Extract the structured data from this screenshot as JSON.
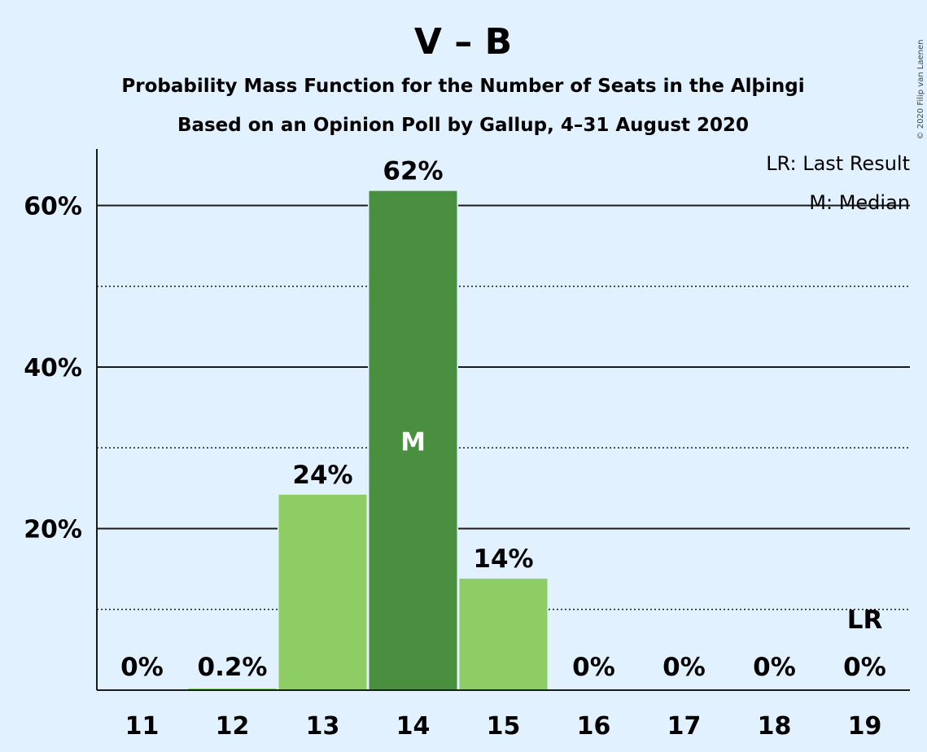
{
  "chart_data": {
    "type": "bar",
    "title": "V – B",
    "subtitle_1": "Probability Mass Function for the Number of Seats in the Alþingi",
    "subtitle_2": "Based on an Opinion Poll by Gallup, 4–31 August 2020",
    "copyright": "© 2020 Filip van Laenen",
    "legend": [
      "LR: Last Result",
      "M: Median"
    ],
    "legend_position": "top-right",
    "categories": [
      "11",
      "12",
      "13",
      "14",
      "15",
      "16",
      "17",
      "18",
      "19"
    ],
    "values": [
      0,
      0.2,
      24.2,
      61.8,
      13.8,
      0,
      0,
      0,
      0
    ],
    "value_labels": [
      "0%",
      "0.2%",
      "24%",
      "62%",
      "14%",
      "0%",
      "0%",
      "0%",
      "0%"
    ],
    "median_category": "14",
    "median_marker": "M",
    "last_result_category": "19",
    "last_result_marker": "LR",
    "ylim": [
      0,
      67
    ],
    "yticks": [
      20,
      40,
      60
    ],
    "ytick_labels": [
      "20%",
      "40%",
      "60%"
    ],
    "minor_gridlines": [
      10,
      30,
      50
    ],
    "grid": true,
    "colors": {
      "median_bar": "#4a8e3f",
      "other_bar": "#8dcd64",
      "background": "#e2f1ff"
    }
  }
}
